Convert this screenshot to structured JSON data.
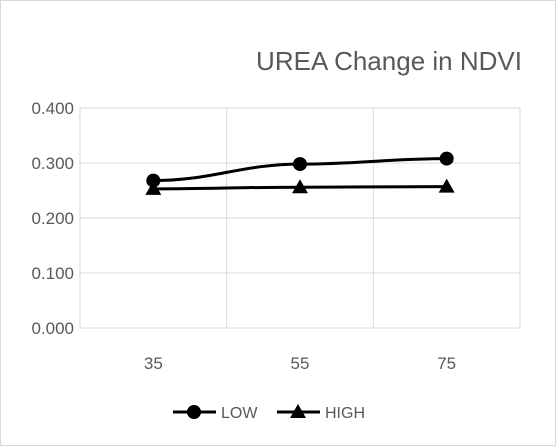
{
  "chart_data": {
    "type": "line",
    "title": "UREA Change in NDVI",
    "xlabel": "",
    "ylabel": "",
    "categories": [
      "35",
      "55",
      "75"
    ],
    "y_ticks": [
      "0.000",
      "0.100",
      "0.200",
      "0.300",
      "0.400"
    ],
    "ylim": [
      0,
      0.4
    ],
    "grid": true,
    "legend_position": "bottom",
    "series": [
      {
        "name": "LOW",
        "values": [
          0.268,
          0.298,
          0.308
        ],
        "marker": "circle",
        "color": "#000000"
      },
      {
        "name": "HIGH",
        "values": [
          0.253,
          0.256,
          0.257
        ],
        "marker": "triangle",
        "color": "#000000"
      }
    ],
    "gridline_color": "#d9d9d9"
  }
}
